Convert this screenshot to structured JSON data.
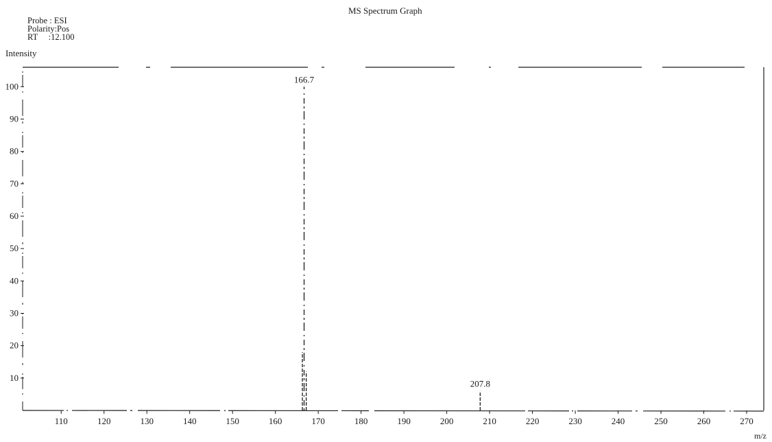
{
  "header": {
    "probe": "Probe : ESI",
    "polarity": "Polarity:Pos",
    "rt": "RT     :12.100"
  },
  "chart_data": {
    "type": "bar",
    "title": "MS Spectrum Graph",
    "ylabel": "Intensity",
    "xlabel": "m/z",
    "xlim": [
      101,
      274
    ],
    "ylim": [
      0,
      106
    ],
    "x_ticks": [
      110,
      120,
      130,
      140,
      150,
      160,
      170,
      180,
      190,
      200,
      210,
      220,
      230,
      240,
      250,
      260,
      270
    ],
    "y_ticks": [
      10,
      20,
      30,
      40,
      50,
      60,
      70,
      80,
      90,
      100
    ],
    "grid": false,
    "series": [
      {
        "peaks": [
          {
            "mz": 166.3,
            "intensity": 18
          },
          {
            "mz": 166.7,
            "intensity": 100,
            "label": "166.7"
          },
          {
            "mz": 167.2,
            "intensity": 12
          },
          {
            "mz": 207.8,
            "intensity": 6,
            "label": "207.8"
          }
        ]
      }
    ]
  },
  "colors": {
    "ink": "#1a1a1a",
    "background": "#ffffff"
  }
}
